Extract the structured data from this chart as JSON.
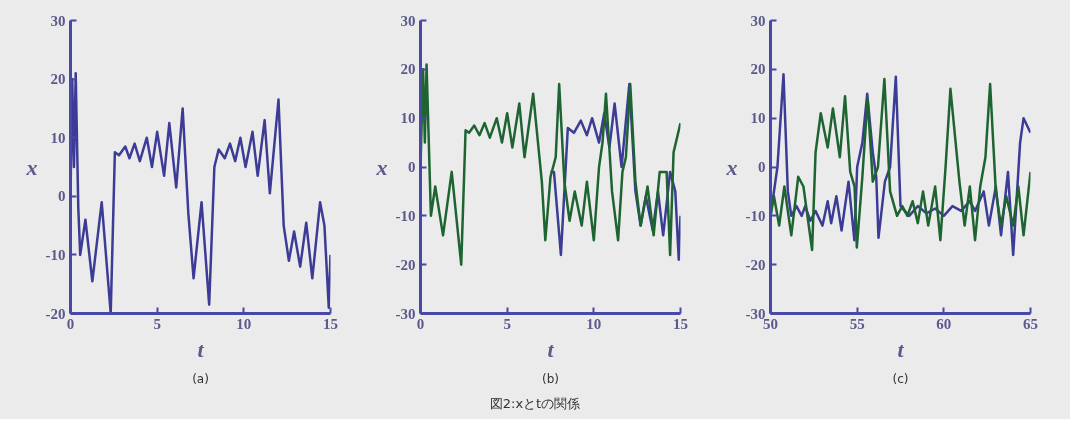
{
  "chart_data": [
    {
      "type": "line",
      "title": "(a)",
      "xlabel": "t",
      "ylabel": "x",
      "xlim": [
        0,
        15
      ],
      "ylim": [
        -20,
        30
      ],
      "xticks": [
        0,
        5,
        10,
        15
      ],
      "yticks": [
        -20,
        -10,
        0,
        10,
        20,
        30
      ],
      "grid": false,
      "marker": "none",
      "line_style": "solid",
      "series": [
        {
          "color": "#3c3c96",
          "x": [
            0,
            0.1,
            0.2,
            0.3,
            0.45,
            0.56,
            0.86,
            1.26,
            1.8,
            2.32,
            2.56,
            2.8,
            3.16,
            3.4,
            3.7,
            4.0,
            4.4,
            4.7,
            5.0,
            5.4,
            5.7,
            6.1,
            6.47,
            6.8,
            7.1,
            7.56,
            8.0,
            8.3,
            8.55,
            8.9,
            9.2,
            9.5,
            9.8,
            10.1,
            10.5,
            10.8,
            11.2,
            11.5,
            12.0,
            12.3,
            12.6,
            12.9,
            13.25,
            13.6,
            13.95,
            14.4,
            14.65,
            14.9,
            15
          ],
          "values": [
            0,
            20,
            5,
            21,
            -2,
            -10,
            -4,
            -14.5,
            -1,
            -20,
            7.5,
            7,
            8.5,
            6.5,
            9,
            6,
            10,
            5,
            11,
            3.5,
            12.5,
            1.5,
            15,
            -3,
            -14,
            -1,
            -18.5,
            5,
            8,
            6.5,
            9,
            6,
            10,
            5,
            11,
            3.5,
            13,
            0.5,
            16.5,
            -5,
            -11,
            -6,
            -12,
            -4.5,
            -14,
            -1,
            -5,
            -19,
            -10
          ]
        }
      ]
    },
    {
      "type": "line",
      "title": "(b)",
      "xlabel": "t",
      "ylabel": "x",
      "xlim": [
        0,
        15
      ],
      "ylim": [
        -30,
        30
      ],
      "xticks": [
        0,
        5,
        10,
        15
      ],
      "yticks": [
        -30,
        -20,
        -10,
        0,
        10,
        20,
        30
      ],
      "grid": false,
      "marker": "none",
      "line_style": "solid",
      "series": [
        {
          "color": "#3c3c96",
          "x": [
            7.5,
            7.7,
            8.1,
            8.5,
            8.85,
            9.25,
            9.6,
            9.9,
            10.3,
            10.6,
            10.9,
            11.2,
            11.6,
            12.05,
            12.4,
            12.7,
            13.0,
            13.4,
            13.7,
            14.0,
            14.4,
            14.7,
            14.9,
            15
          ],
          "values": [
            -1,
            -1,
            -18,
            8,
            7,
            9.5,
            6.5,
            10,
            5,
            11,
            4,
            13,
            0,
            17,
            -5,
            -12,
            -6,
            -13,
            -5,
            -14,
            -1,
            -5,
            -19,
            -10
          ]
        },
        {
          "color": "#1e6432",
          "x": [
            0,
            0.15,
            0.25,
            0.35,
            0.6,
            0.85,
            1.3,
            1.8,
            2.35,
            2.6,
            2.8,
            3.1,
            3.4,
            3.7,
            4.0,
            4.4,
            4.7,
            5.0,
            5.3,
            5.7,
            6.0,
            6.5,
            7.0,
            7.2,
            7.5,
            7.8,
            8.0,
            8.3,
            8.6,
            8.9,
            9.3,
            9.6,
            10.0,
            10.3,
            10.5,
            10.7,
            11.05,
            11.4,
            11.65,
            11.85,
            12.1,
            12.4,
            12.7,
            13.1,
            13.45,
            13.8,
            14.2,
            14.4,
            14.6,
            15
          ],
          "values": [
            0,
            20,
            5,
            21,
            -10,
            -4,
            -14,
            -1,
            -20,
            7.5,
            7,
            8.5,
            6.5,
            9,
            6,
            10,
            5,
            11,
            4,
            13,
            2,
            15,
            -3,
            -15,
            -2,
            2,
            17,
            -3,
            -11,
            -5,
            -12,
            -3,
            -15,
            0,
            5,
            15,
            -5,
            -15,
            -1,
            2,
            17,
            -3,
            -12,
            -4,
            -14,
            -1,
            -1,
            -18,
            3,
            9
          ]
        }
      ]
    },
    {
      "type": "line",
      "title": "(c)",
      "xlabel": "t",
      "ylabel": "x",
      "xlim": [
        50,
        65
      ],
      "ylim": [
        -30,
        30
      ],
      "xticks": [
        50,
        55,
        60,
        65
      ],
      "yticks": [
        -30,
        -20,
        -10,
        0,
        10,
        20,
        30
      ],
      "grid": false,
      "marker": "none",
      "line_style": "solid",
      "annotations": [
        "図2:xとtの関係"
      ],
      "series": [
        {
          "color": "#3c3c96",
          "x": [
            50,
            50.4,
            50.75,
            51.0,
            51.2,
            51.5,
            51.8,
            52.0,
            52.3,
            52.6,
            53.0,
            53.3,
            53.5,
            53.8,
            54.1,
            54.5,
            54.84,
            55.0,
            55.3,
            55.58,
            55.9,
            56.1,
            56.23,
            56.6,
            56.9,
            57.23,
            57.5,
            58,
            58.5,
            59,
            59.5,
            60,
            60.5,
            61,
            61.5,
            61.8,
            62.3,
            62.6,
            63.0,
            63.3,
            63.7,
            64.0,
            64.4,
            64.6,
            65
          ],
          "values": [
            -10,
            0,
            19,
            -5,
            -10,
            -8,
            -10,
            -8,
            -11,
            -9,
            -12,
            -7,
            -11.5,
            -6,
            -13,
            -3,
            -15,
            0,
            5,
            15,
            3,
            -2,
            -14.5,
            -3,
            0,
            18.5,
            -8,
            -10,
            -8,
            -9.5,
            -8.5,
            -10,
            -8,
            -9,
            -7,
            -9,
            -5,
            -12,
            -4,
            -14,
            -1,
            -18,
            5,
            10,
            7
          ]
        },
        {
          "color": "#1e6432",
          "x": [
            50,
            50.2,
            50.5,
            50.8,
            51.2,
            51.6,
            51.9,
            52.4,
            52.6,
            52.9,
            53.3,
            53.6,
            54.0,
            54.3,
            54.6,
            54.85,
            54.98,
            55.3,
            55.6,
            55.9,
            56.2,
            56.57,
            56.9,
            57.3,
            57.6,
            57.9,
            58.2,
            58.5,
            58.8,
            59.1,
            59.5,
            59.8,
            60.1,
            60.38,
            60.9,
            61.2,
            61.5,
            61.8,
            62.1,
            62.4,
            62.67,
            63.0,
            63.3,
            63.6,
            64.0,
            64.3,
            64.6,
            65
          ],
          "values": [
            -10,
            -6,
            -12,
            -4,
            -14,
            -2,
            -4,
            -17,
            3,
            11,
            4,
            12,
            2,
            14.5,
            -1,
            -4,
            -16.5,
            -2,
            14,
            -3,
            0,
            18,
            -5,
            -10,
            -8,
            -10,
            -7,
            -11.5,
            -5,
            -12,
            -4,
            -15,
            0,
            16,
            -3,
            -12,
            -4,
            -15,
            -4,
            2,
            17,
            -5,
            -12,
            -6,
            -12,
            -4,
            -14,
            -1
          ]
        }
      ]
    }
  ]
}
